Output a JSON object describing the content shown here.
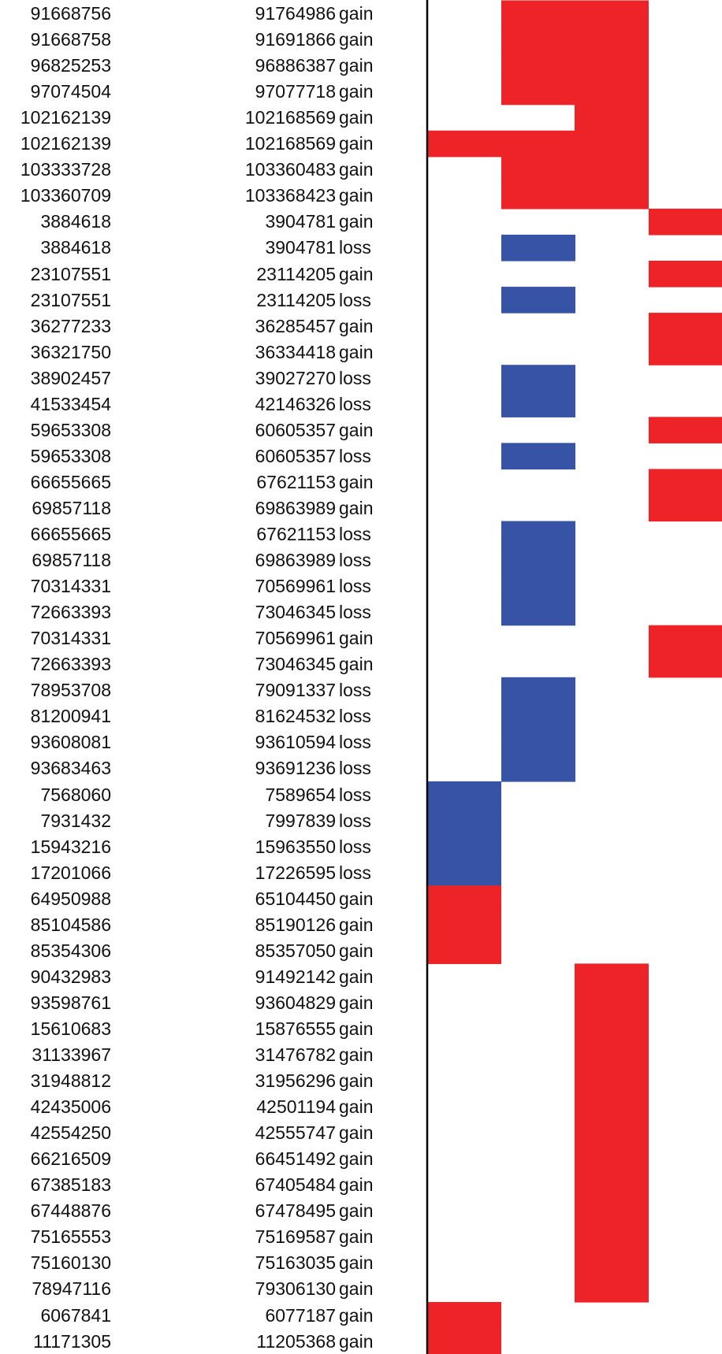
{
  "chart_data": {
    "type": "heatmap",
    "title": "",
    "xlabel": "",
    "ylabel": "",
    "legend": "none",
    "grid": false,
    "columns": 4,
    "colors": {
      "gain": "#ee2327",
      "loss": "#3653a5"
    },
    "rows": [
      {
        "start": "91668756",
        "end": "91764986",
        "type": "gain",
        "cells": [
          0,
          1,
          1,
          0
        ]
      },
      {
        "start": "91668758",
        "end": "91691866",
        "type": "gain",
        "cells": [
          0,
          1,
          1,
          0
        ]
      },
      {
        "start": "96825253",
        "end": "96886387",
        "type": "gain",
        "cells": [
          0,
          1,
          1,
          0
        ]
      },
      {
        "start": "97074504",
        "end": "97077718",
        "type": "gain",
        "cells": [
          0,
          1,
          1,
          0
        ]
      },
      {
        "start": "102162139",
        "end": "102168569",
        "type": "gain",
        "cells": [
          0,
          0,
          1,
          0
        ]
      },
      {
        "start": "102162139",
        "end": "102168569",
        "type": "gain",
        "cells": [
          1,
          1,
          1,
          0
        ]
      },
      {
        "start": "103333728",
        "end": "103360483",
        "type": "gain",
        "cells": [
          0,
          1,
          1,
          0
        ]
      },
      {
        "start": "103360709",
        "end": "103368423",
        "type": "gain",
        "cells": [
          0,
          1,
          1,
          0
        ]
      },
      {
        "start": "3884618",
        "end": "3904781",
        "type": "gain",
        "cells": [
          0,
          0,
          0,
          1
        ]
      },
      {
        "start": "3884618",
        "end": "3904781",
        "type": "loss",
        "cells": [
          0,
          1,
          0,
          0
        ]
      },
      {
        "start": "23107551",
        "end": "23114205",
        "type": "gain",
        "cells": [
          0,
          0,
          0,
          1
        ]
      },
      {
        "start": "23107551",
        "end": "23114205",
        "type": "loss",
        "cells": [
          0,
          1,
          0,
          0
        ]
      },
      {
        "start": "36277233",
        "end": "36285457",
        "type": "gain",
        "cells": [
          0,
          0,
          0,
          1
        ]
      },
      {
        "start": "36321750",
        "end": "36334418",
        "type": "gain",
        "cells": [
          0,
          0,
          0,
          1
        ]
      },
      {
        "start": "38902457",
        "end": "39027270",
        "type": "loss",
        "cells": [
          0,
          1,
          0,
          0
        ]
      },
      {
        "start": "41533454",
        "end": "42146326",
        "type": "loss",
        "cells": [
          0,
          1,
          0,
          0
        ]
      },
      {
        "start": "59653308",
        "end": "60605357",
        "type": "gain",
        "cells": [
          0,
          0,
          0,
          1
        ]
      },
      {
        "start": "59653308",
        "end": "60605357",
        "type": "loss",
        "cells": [
          0,
          1,
          0,
          0
        ]
      },
      {
        "start": "66655665",
        "end": "67621153",
        "type": "gain",
        "cells": [
          0,
          0,
          0,
          1
        ]
      },
      {
        "start": "69857118",
        "end": "69863989",
        "type": "gain",
        "cells": [
          0,
          0,
          0,
          1
        ]
      },
      {
        "start": "66655665",
        "end": "67621153",
        "type": "loss",
        "cells": [
          0,
          1,
          0,
          0
        ]
      },
      {
        "start": "69857118",
        "end": "69863989",
        "type": "loss",
        "cells": [
          0,
          1,
          0,
          0
        ]
      },
      {
        "start": "70314331",
        "end": "70569961",
        "type": "loss",
        "cells": [
          0,
          1,
          0,
          0
        ]
      },
      {
        "start": "72663393",
        "end": "73046345",
        "type": "loss",
        "cells": [
          0,
          1,
          0,
          0
        ]
      },
      {
        "start": "70314331",
        "end": "70569961",
        "type": "gain",
        "cells": [
          0,
          0,
          0,
          1
        ]
      },
      {
        "start": "72663393",
        "end": "73046345",
        "type": "gain",
        "cells": [
          0,
          0,
          0,
          1
        ]
      },
      {
        "start": "78953708",
        "end": "79091337",
        "type": "loss",
        "cells": [
          0,
          1,
          0,
          0
        ]
      },
      {
        "start": "81200941",
        "end": "81624532",
        "type": "loss",
        "cells": [
          0,
          1,
          0,
          0
        ]
      },
      {
        "start": "93608081",
        "end": "93610594",
        "type": "loss",
        "cells": [
          0,
          1,
          0,
          0
        ]
      },
      {
        "start": "93683463",
        "end": "93691236",
        "type": "loss",
        "cells": [
          0,
          1,
          0,
          0
        ]
      },
      {
        "start": "7568060",
        "end": "7589654",
        "type": "loss",
        "cells": [
          1,
          0,
          0,
          0
        ]
      },
      {
        "start": "7931432",
        "end": "7997839",
        "type": "loss",
        "cells": [
          1,
          0,
          0,
          0
        ]
      },
      {
        "start": "15943216",
        "end": "15963550",
        "type": "loss",
        "cells": [
          1,
          0,
          0,
          0
        ]
      },
      {
        "start": "17201066",
        "end": "17226595",
        "type": "loss",
        "cells": [
          1,
          0,
          0,
          0
        ]
      },
      {
        "start": "64950988",
        "end": "65104450",
        "type": "gain",
        "cells": [
          1,
          0,
          0,
          0
        ]
      },
      {
        "start": "85104586",
        "end": "85190126",
        "type": "gain",
        "cells": [
          1,
          0,
          0,
          0
        ]
      },
      {
        "start": "85354306",
        "end": "85357050",
        "type": "gain",
        "cells": [
          1,
          0,
          0,
          0
        ]
      },
      {
        "start": "90432983",
        "end": "91492142",
        "type": "gain",
        "cells": [
          0,
          0,
          1,
          0
        ]
      },
      {
        "start": "93598761",
        "end": "93604829",
        "type": "gain",
        "cells": [
          0,
          0,
          1,
          0
        ]
      },
      {
        "start": "15610683",
        "end": "15876555",
        "type": "gain",
        "cells": [
          0,
          0,
          1,
          0
        ]
      },
      {
        "start": "31133967",
        "end": "31476782",
        "type": "gain",
        "cells": [
          0,
          0,
          1,
          0
        ]
      },
      {
        "start": "31948812",
        "end": "31956296",
        "type": "gain",
        "cells": [
          0,
          0,
          1,
          0
        ]
      },
      {
        "start": "42435006",
        "end": "42501194",
        "type": "gain",
        "cells": [
          0,
          0,
          1,
          0
        ]
      },
      {
        "start": "42554250",
        "end": "42555747",
        "type": "gain",
        "cells": [
          0,
          0,
          1,
          0
        ]
      },
      {
        "start": "66216509",
        "end": "66451492",
        "type": "gain",
        "cells": [
          0,
          0,
          1,
          0
        ]
      },
      {
        "start": "67385183",
        "end": "67405484",
        "type": "gain",
        "cells": [
          0,
          0,
          1,
          0
        ]
      },
      {
        "start": "67448876",
        "end": "67478495",
        "type": "gain",
        "cells": [
          0,
          0,
          1,
          0
        ]
      },
      {
        "start": "75165553",
        "end": "75169587",
        "type": "gain",
        "cells": [
          0,
          0,
          1,
          0
        ]
      },
      {
        "start": "75160130",
        "end": "75163035",
        "type": "gain",
        "cells": [
          0,
          0,
          1,
          0
        ]
      },
      {
        "start": "78947116",
        "end": "79306130",
        "type": "gain",
        "cells": [
          0,
          0,
          1,
          0
        ]
      },
      {
        "start": "6067841",
        "end": "6077187",
        "type": "gain",
        "cells": [
          1,
          0,
          0,
          0
        ]
      },
      {
        "start": "11171305",
        "end": "11205368",
        "type": "gain",
        "cells": [
          1,
          0,
          0,
          0
        ]
      }
    ]
  }
}
